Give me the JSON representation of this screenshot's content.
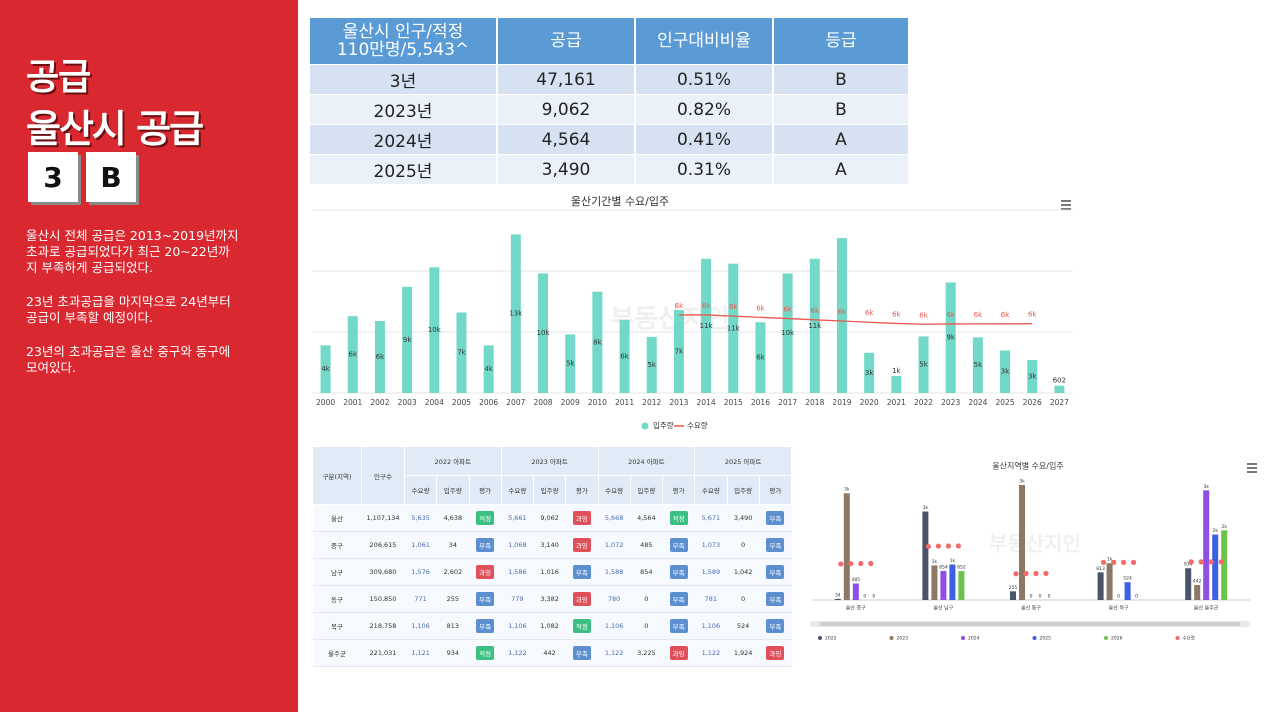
{
  "sidebar": {
    "title": "공급",
    "subtitle": "울산시 공급",
    "badges": [
      "3",
      "B"
    ],
    "paragraphs": [
      "울산시 전체 공급은 2013~2019년까지\n초과로 공급되었다가 최근 20~22년까\n지 부족하게 공급되었다.",
      "23년 초과공급을 마지막으로 24년부터\n공급이 부족할 예정이다.",
      "23년의 초과공급은 울산 중구와 동구에\n모여있다."
    ]
  },
  "summary_table": {
    "header": [
      "울산시 인구/적정\n110만명/5,543^",
      "공급",
      "인구대비비율",
      "등급"
    ],
    "rows": [
      [
        "3년",
        "47,161",
        "0.51%",
        "B"
      ],
      [
        "2023년",
        "9,062",
        "0.82%",
        "B"
      ],
      [
        "2024년",
        "4,564",
        "0.41%",
        "A"
      ],
      [
        "2025년",
        "3,490",
        "0.31%",
        "A"
      ]
    ]
  },
  "chart_data": [
    {
      "type": "bar_line",
      "title": "울산기간별 수요/입주",
      "watermark": "부동산지인",
      "categories": [
        "2000",
        "2001",
        "2002",
        "2003",
        "2004",
        "2005",
        "2006",
        "2007",
        "2008",
        "2009",
        "2010",
        "2011",
        "2012",
        "2013",
        "2014",
        "2015",
        "2016",
        "2017",
        "2018",
        "2019",
        "2020",
        "2021",
        "2022",
        "2023",
        "2024",
        "2025",
        "2026",
        "2027"
      ],
      "series": [
        {
          "name": "입주량",
          "type": "bar",
          "color": "#72d8c8",
          "values": [
            3900,
            6300,
            5900,
            8700,
            10300,
            6600,
            3900,
            13000,
            9800,
            4800,
            8300,
            6000,
            4600,
            6800,
            11000,
            10600,
            5800,
            9800,
            11000,
            12700,
            3300,
            1400,
            4638,
            9062,
            4564,
            3490,
            2700,
            602
          ],
          "value_labels": [
            "4k",
            "6k",
            "6k",
            "9k",
            "10k",
            "7k",
            "4k",
            "13k",
            "10k",
            "5k",
            "8k",
            "6k",
            "5k",
            "7k",
            "11k",
            "11k",
            "6k",
            "10k",
            "11k",
            null,
            "3k",
            "1k",
            "5k",
            "9k",
            "5k",
            "3k",
            "3k",
            "602"
          ]
        },
        {
          "name": "수요량",
          "type": "line",
          "color": "#e8584f",
          "values": [
            null,
            null,
            null,
            null,
            null,
            null,
            null,
            null,
            null,
            null,
            null,
            null,
            null,
            6400,
            6400,
            6300,
            6200,
            6100,
            6000,
            5900,
            5800,
            5700,
            5635,
            5661,
            5668,
            5671,
            5680,
            null
          ],
          "value_labels": [
            null,
            null,
            null,
            null,
            null,
            null,
            null,
            null,
            null,
            null,
            null,
            null,
            null,
            "6k",
            "6k",
            "6k",
            "6k",
            "6k",
            "6k",
            "6k",
            "6k",
            "6k",
            "6k",
            "6k",
            "6k",
            "6k",
            "6k",
            null
          ]
        }
      ],
      "ylim": [
        0,
        15000
      ],
      "yticks": [
        0,
        5000,
        10000,
        15000
      ],
      "grid": true,
      "legend": "bottom"
    },
    {
      "type": "grouped_bar",
      "title": "울산지역별 수요/입주",
      "watermark": "부동산지인",
      "categories": [
        "울산 중구",
        "울산 남구",
        "울산 동구",
        "울산 북구",
        "울산 울주군"
      ],
      "series": [
        {
          "name": "2022",
          "color": "#4a5468",
          "values": [
            34,
            2602,
            255,
            813,
            934
          ],
          "value_labels": [
            "34",
            "3k",
            "255",
            "813",
            "934"
          ]
        },
        {
          "name": "2023",
          "color": "#8c7864",
          "values": [
            3140,
            1016,
            3382,
            1082,
            442
          ],
          "value_labels": [
            "3k",
            "1k",
            "3k",
            "1k",
            "442"
          ]
        },
        {
          "name": "2024",
          "color": "#8d4fe6",
          "values": [
            485,
            854,
            0,
            0,
            3225
          ],
          "value_labels": [
            "485",
            "854",
            "0",
            "0",
            "3k"
          ]
        },
        {
          "name": "2025",
          "color": "#3d5fe3",
          "values": [
            0,
            1042,
            0,
            524,
            1924
          ],
          "value_labels": [
            "0",
            "1k",
            "0",
            "524",
            "2k"
          ]
        },
        {
          "name": "2026",
          "color": "#6cc24a",
          "values": [
            0,
            852,
            0,
            0,
            2050
          ],
          "value_labels": [
            "0",
            "852",
            "0",
            "0",
            "2k"
          ]
        }
      ],
      "demand": {
        "name": "수요량",
        "color": "#f26a6a",
        "values": [
          [
            1061,
            1068,
            1072,
            1073
          ],
          [
            1576,
            1586,
            1588,
            1589
          ],
          [
            771,
            779,
            780,
            781
          ],
          [
            1106,
            1106,
            1106,
            1106
          ],
          [
            1121,
            1122,
            1122,
            1122
          ]
        ]
      },
      "ylim": [
        0,
        3500
      ],
      "legend": "bottom"
    }
  ],
  "detail_table": {
    "header_region": "구분(지역)",
    "header_population": "인구수",
    "years": [
      "2022 아파트",
      "2023 아파트",
      "2024 아파트",
      "2025 아파트"
    ],
    "subheaders": [
      "수요량",
      "입주량",
      "평가"
    ],
    "rating_colors": {
      "적정": "#3cbf83",
      "과잉": "#e0505a",
      "부족": "#5b8fd0"
    },
    "rows": [
      {
        "region": "울산",
        "population": "1,107,134",
        "cells": [
          [
            "5,635",
            "4,638",
            "적정"
          ],
          [
            "5,661",
            "9,062",
            "과잉"
          ],
          [
            "5,668",
            "4,564",
            "적정"
          ],
          [
            "5,671",
            "3,490",
            "부족"
          ]
        ]
      },
      {
        "region": "중구",
        "population": "206,615",
        "cells": [
          [
            "1,061",
            "34",
            "부족"
          ],
          [
            "1,068",
            "3,140",
            "과잉"
          ],
          [
            "1,072",
            "485",
            "부족"
          ],
          [
            "1,073",
            "0",
            "부족"
          ]
        ]
      },
      {
        "region": "남구",
        "population": "309,680",
        "cells": [
          [
            "1,576",
            "2,602",
            "과잉"
          ],
          [
            "1,586",
            "1,016",
            "부족"
          ],
          [
            "1,588",
            "854",
            "부족"
          ],
          [
            "1,589",
            "1,042",
            "부족"
          ]
        ]
      },
      {
        "region": "동구",
        "population": "150,850",
        "cells": [
          [
            "771",
            "255",
            "부족"
          ],
          [
            "779",
            "3,382",
            "과잉"
          ],
          [
            "780",
            "0",
            "부족"
          ],
          [
            "781",
            "0",
            "부족"
          ]
        ]
      },
      {
        "region": "북구",
        "population": "218,758",
        "cells": [
          [
            "1,106",
            "813",
            "부족"
          ],
          [
            "1,106",
            "1,082",
            "적정"
          ],
          [
            "1,106",
            "0",
            "부족"
          ],
          [
            "1,106",
            "524",
            "부족"
          ]
        ]
      },
      {
        "region": "울주군",
        "population": "221,031",
        "cells": [
          [
            "1,121",
            "934",
            "적정"
          ],
          [
            "1,122",
            "442",
            "부족"
          ],
          [
            "1,122",
            "3,225",
            "과잉"
          ],
          [
            "1,122",
            "1,924",
            "과잉"
          ]
        ]
      }
    ]
  }
}
